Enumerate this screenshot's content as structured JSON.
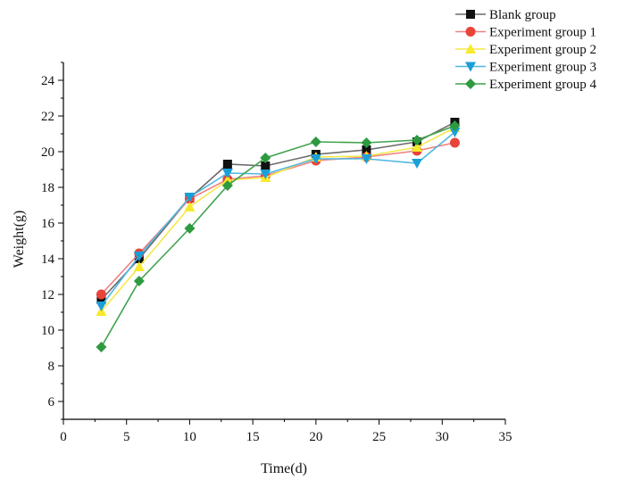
{
  "chart_data": {
    "type": "line",
    "title": "",
    "xlabel": "Time(d)",
    "ylabel": "Weight(g)",
    "xlim": [
      0,
      35
    ],
    "ylim": [
      5,
      25
    ],
    "x_ticks": [
      0,
      5,
      10,
      15,
      20,
      25,
      30,
      35
    ],
    "y_ticks": [
      6,
      8,
      10,
      12,
      14,
      16,
      18,
      20,
      22,
      24
    ],
    "x": [
      3,
      6,
      10,
      13,
      16,
      20,
      24,
      28,
      31
    ],
    "grid": false,
    "legend_position": "top-right",
    "series": [
      {
        "name": "Blank group",
        "color": "#6b6b6b",
        "marker_color": "#111111",
        "marker": "square",
        "values": [
          11.7,
          14.0,
          17.4,
          19.3,
          19.2,
          19.85,
          20.1,
          20.55,
          21.65
        ]
      },
      {
        "name": "Experiment group 1",
        "color": "#f08080",
        "marker_color": "#e8443a",
        "marker": "circle",
        "values": [
          12.0,
          14.3,
          17.35,
          18.45,
          18.65,
          19.5,
          19.7,
          20.05,
          20.5
        ]
      },
      {
        "name": "Experiment group 2",
        "color": "#f5e84a",
        "marker_color": "#f7ea2a",
        "marker": "triangle-up",
        "values": [
          11.05,
          13.55,
          16.9,
          18.4,
          18.55,
          19.7,
          19.75,
          20.25,
          21.35
        ]
      },
      {
        "name": "Experiment group 3",
        "color": "#4fb8e0",
        "marker_color": "#1aa0d8",
        "marker": "triangle-down",
        "values": [
          11.35,
          14.15,
          17.45,
          18.8,
          18.75,
          19.6,
          19.6,
          19.35,
          21.1
        ]
      },
      {
        "name": "Experiment group 4",
        "color": "#3fa34d",
        "marker_color": "#2e9a40",
        "marker": "diamond",
        "values": [
          9.05,
          12.75,
          15.7,
          18.1,
          19.65,
          20.55,
          20.5,
          20.65,
          21.45
        ]
      }
    ]
  }
}
